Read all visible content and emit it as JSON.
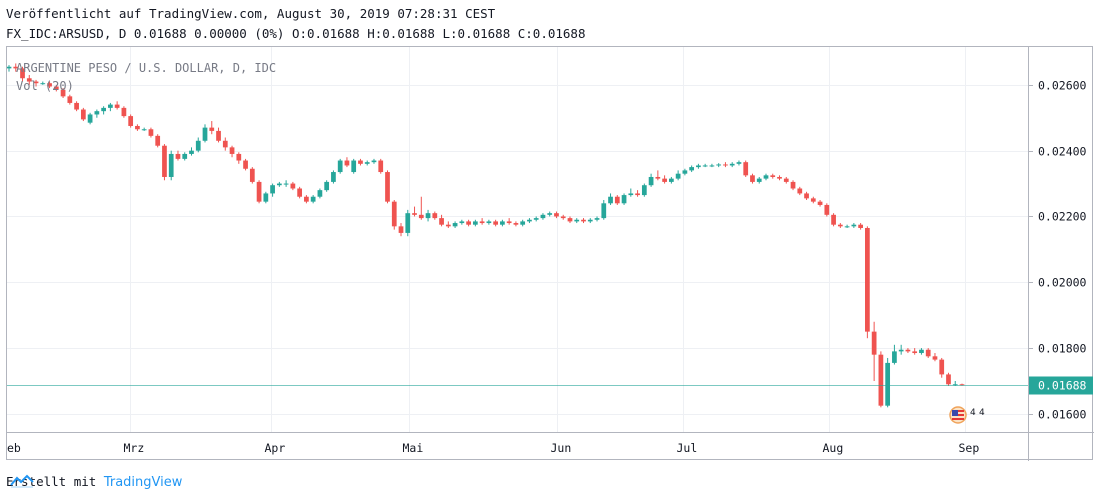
{
  "header": {
    "published": "Veröffentlicht auf TradingView.com, August 30, 2019 07:28:31 CEST",
    "ohlc": "FX_IDC:ARSUSD, D 0.01688 0.00000 (0%) O:0.01688 H:0.01688 L:0.01688 C:0.01688"
  },
  "footer": {
    "created_with": "Erstellt mit",
    "brand": "TradingView"
  },
  "colors": {
    "up": "#26a69a",
    "down": "#ef5350",
    "last_price_line": "#26a69a",
    "grid": "#eef0f4"
  },
  "chart_data": {
    "type": "candlestick",
    "title": "ARGENTINE PESO / U.S. DOLLAR, D, IDC",
    "indicator": "Vol (20)",
    "x_tick_labels": [
      "eb",
      "Mrz",
      "Apr",
      "Mai",
      "Jun",
      "Jul",
      "Aug",
      "Sep"
    ],
    "y_tick_labels": [
      "0.02600",
      "0.02400",
      "0.02200",
      "0.02000",
      "0.01800",
      "0.01600"
    ],
    "y_ticks": [
      0.026,
      0.024,
      0.022,
      0.02,
      0.018,
      0.016
    ],
    "ylim": [
      0.01545,
      0.02715
    ],
    "last_price_label": "0.01688",
    "last_price": 0.01688,
    "grid": true,
    "candles": [
      [
        0.0265,
        0.0266,
        0.0264,
        0.02655
      ],
      [
        0.02655,
        0.02665,
        0.0264,
        0.0265
      ],
      [
        0.0265,
        0.02655,
        0.0261,
        0.0262
      ],
      [
        0.0262,
        0.0263,
        0.026,
        0.0261
      ],
      [
        0.0261,
        0.02615,
        0.02595,
        0.02605
      ],
      [
        0.02605,
        0.0261,
        0.026,
        0.02605
      ],
      [
        0.02605,
        0.0261,
        0.0259,
        0.02595
      ],
      [
        0.02595,
        0.026,
        0.0258,
        0.02585
      ],
      [
        0.02585,
        0.0259,
        0.0256,
        0.02565
      ],
      [
        0.02565,
        0.0257,
        0.0254,
        0.02545
      ],
      [
        0.02545,
        0.0255,
        0.0252,
        0.02525
      ],
      [
        0.02525,
        0.0253,
        0.0249,
        0.02495
      ],
      [
        0.02485,
        0.02515,
        0.0248,
        0.0251
      ],
      [
        0.0251,
        0.02525,
        0.025,
        0.0252
      ],
      [
        0.0252,
        0.02535,
        0.0251,
        0.0253
      ],
      [
        0.0253,
        0.02545,
        0.0252,
        0.0254
      ],
      [
        0.0254,
        0.0255,
        0.02525,
        0.0253
      ],
      [
        0.0253,
        0.02535,
        0.025,
        0.02505
      ],
      [
        0.02505,
        0.0251,
        0.0247,
        0.02475
      ],
      [
        0.02475,
        0.0248,
        0.0246,
        0.02465
      ],
      [
        0.02465,
        0.0247,
        0.0246,
        0.02465
      ],
      [
        0.02465,
        0.0247,
        0.0244,
        0.02445
      ],
      [
        0.02445,
        0.0245,
        0.0241,
        0.02415
      ],
      [
        0.02415,
        0.0242,
        0.0231,
        0.0232
      ],
      [
        0.0232,
        0.024,
        0.0231,
        0.0239
      ],
      [
        0.0239,
        0.024,
        0.0237,
        0.02375
      ],
      [
        0.02375,
        0.02395,
        0.0237,
        0.0239
      ],
      [
        0.0239,
        0.0241,
        0.02385,
        0.024
      ],
      [
        0.024,
        0.0244,
        0.02395,
        0.0243
      ],
      [
        0.0243,
        0.0248,
        0.02425,
        0.0247
      ],
      [
        0.0247,
        0.0249,
        0.0245,
        0.0246
      ],
      [
        0.0246,
        0.0247,
        0.02425,
        0.0243
      ],
      [
        0.0243,
        0.0244,
        0.024,
        0.0241
      ],
      [
        0.0241,
        0.02415,
        0.0238,
        0.0239
      ],
      [
        0.0239,
        0.02395,
        0.0236,
        0.0237
      ],
      [
        0.0237,
        0.02375,
        0.0234,
        0.02345
      ],
      [
        0.02345,
        0.0235,
        0.023,
        0.02305
      ],
      [
        0.02305,
        0.0231,
        0.0224,
        0.02245
      ],
      [
        0.02245,
        0.02275,
        0.0224,
        0.0227
      ],
      [
        0.0227,
        0.023,
        0.0226,
        0.02295
      ],
      [
        0.02295,
        0.02305,
        0.0229,
        0.023
      ],
      [
        0.023,
        0.0231,
        0.0229,
        0.023
      ],
      [
        0.023,
        0.02305,
        0.0228,
        0.02285
      ],
      [
        0.02285,
        0.0229,
        0.02255,
        0.0226
      ],
      [
        0.0226,
        0.02265,
        0.0224,
        0.02245
      ],
      [
        0.02245,
        0.02265,
        0.0224,
        0.0226
      ],
      [
        0.0226,
        0.02285,
        0.02255,
        0.0228
      ],
      [
        0.0228,
        0.0231,
        0.02275,
        0.02305
      ],
      [
        0.02305,
        0.0234,
        0.023,
        0.02335
      ],
      [
        0.02335,
        0.02375,
        0.0233,
        0.0237
      ],
      [
        0.0237,
        0.0238,
        0.0235,
        0.02355
      ],
      [
        0.02335,
        0.02375,
        0.0233,
        0.0237
      ],
      [
        0.0237,
        0.02375,
        0.02355,
        0.0236
      ],
      [
        0.0236,
        0.0237,
        0.02355,
        0.02365
      ],
      [
        0.02365,
        0.02375,
        0.0236,
        0.0237
      ],
      [
        0.0237,
        0.02375,
        0.0233,
        0.02335
      ],
      [
        0.02335,
        0.0234,
        0.0224,
        0.02245
      ],
      [
        0.02245,
        0.0225,
        0.0216,
        0.0217
      ],
      [
        0.0217,
        0.0218,
        0.0214,
        0.0215
      ],
      [
        0.0215,
        0.0222,
        0.0214,
        0.0221
      ],
      [
        0.0221,
        0.0223,
        0.022,
        0.02205
      ],
      [
        0.02205,
        0.0226,
        0.0219,
        0.02195
      ],
      [
        0.02195,
        0.0222,
        0.02185,
        0.0221
      ],
      [
        0.0221,
        0.02215,
        0.0219,
        0.02195
      ],
      [
        0.02195,
        0.02205,
        0.0217,
        0.02175
      ],
      [
        0.02175,
        0.02185,
        0.02165,
        0.0217
      ],
      [
        0.0217,
        0.02185,
        0.02165,
        0.0218
      ],
      [
        0.0218,
        0.0219,
        0.02175,
        0.02185
      ],
      [
        0.02185,
        0.0219,
        0.0217,
        0.02175
      ],
      [
        0.02175,
        0.0219,
        0.0217,
        0.02185
      ],
      [
        0.02185,
        0.02195,
        0.02175,
        0.0218
      ],
      [
        0.0218,
        0.0219,
        0.02175,
        0.02185
      ],
      [
        0.02185,
        0.0219,
        0.0217,
        0.02175
      ],
      [
        0.02175,
        0.0219,
        0.0217,
        0.02185
      ],
      [
        0.02185,
        0.02195,
        0.02175,
        0.0218
      ],
      [
        0.0218,
        0.02185,
        0.0217,
        0.02175
      ],
      [
        0.02175,
        0.0219,
        0.0217,
        0.02185
      ],
      [
        0.02185,
        0.02195,
        0.0218,
        0.0219
      ],
      [
        0.0219,
        0.022,
        0.02185,
        0.02195
      ],
      [
        0.02195,
        0.0221,
        0.0219,
        0.02205
      ],
      [
        0.02205,
        0.02215,
        0.022,
        0.0221
      ],
      [
        0.0221,
        0.02215,
        0.02195,
        0.022
      ],
      [
        0.022,
        0.02205,
        0.0219,
        0.02195
      ],
      [
        0.02195,
        0.022,
        0.0218,
        0.02185
      ],
      [
        0.02185,
        0.02195,
        0.0218,
        0.0219
      ],
      [
        0.0219,
        0.02195,
        0.0218,
        0.02185
      ],
      [
        0.02185,
        0.02195,
        0.0218,
        0.0219
      ],
      [
        0.0219,
        0.022,
        0.02185,
        0.02195
      ],
      [
        0.02195,
        0.0225,
        0.0219,
        0.0224
      ],
      [
        0.0224,
        0.0227,
        0.02235,
        0.0226
      ],
      [
        0.0226,
        0.02265,
        0.02235,
        0.0224
      ],
      [
        0.0224,
        0.0227,
        0.02235,
        0.02265
      ],
      [
        0.02265,
        0.02285,
        0.0226,
        0.0227
      ],
      [
        0.0227,
        0.0228,
        0.0226,
        0.02265
      ],
      [
        0.02265,
        0.023,
        0.0226,
        0.02295
      ],
      [
        0.02295,
        0.0233,
        0.0229,
        0.0232
      ],
      [
        0.0232,
        0.0234,
        0.0231,
        0.02315
      ],
      [
        0.02315,
        0.02325,
        0.023,
        0.02305
      ],
      [
        0.02305,
        0.0232,
        0.023,
        0.02315
      ],
      [
        0.02315,
        0.0234,
        0.0231,
        0.0233
      ],
      [
        0.0233,
        0.02345,
        0.02325,
        0.0234
      ],
      [
        0.0234,
        0.02355,
        0.02335,
        0.0235
      ],
      [
        0.0235,
        0.0236,
        0.02345,
        0.02355
      ],
      [
        0.02355,
        0.0236,
        0.0235,
        0.02355
      ],
      [
        0.02355,
        0.0236,
        0.0235,
        0.02355
      ],
      [
        0.02355,
        0.02362,
        0.0235,
        0.02358
      ],
      [
        0.02358,
        0.02365,
        0.0235,
        0.02355
      ],
      [
        0.02355,
        0.02365,
        0.0235,
        0.0236
      ],
      [
        0.0236,
        0.0237,
        0.02355,
        0.02365
      ],
      [
        0.02365,
        0.0237,
        0.0232,
        0.02325
      ],
      [
        0.02325,
        0.0233,
        0.023,
        0.02305
      ],
      [
        0.02305,
        0.0232,
        0.023,
        0.02315
      ],
      [
        0.02315,
        0.0233,
        0.0231,
        0.02325
      ],
      [
        0.02325,
        0.0233,
        0.02315,
        0.0232
      ],
      [
        0.0232,
        0.02325,
        0.0231,
        0.02315
      ],
      [
        0.02315,
        0.0232,
        0.023,
        0.02305
      ],
      [
        0.02305,
        0.0231,
        0.0228,
        0.02285
      ],
      [
        0.02285,
        0.0229,
        0.02265,
        0.0227
      ],
      [
        0.0227,
        0.02275,
        0.0225,
        0.02255
      ],
      [
        0.02255,
        0.0226,
        0.0224,
        0.02245
      ],
      [
        0.02245,
        0.0225,
        0.0223,
        0.02235
      ],
      [
        0.02235,
        0.0224,
        0.022,
        0.02205
      ],
      [
        0.02205,
        0.0221,
        0.0217,
        0.02175
      ],
      [
        0.02175,
        0.0218,
        0.02165,
        0.0217
      ],
      [
        0.0217,
        0.02175,
        0.02165,
        0.0217
      ],
      [
        0.0217,
        0.0218,
        0.02165,
        0.02175
      ],
      [
        0.02175,
        0.0218,
        0.0216,
        0.02165
      ],
      [
        0.02165,
        0.0217,
        0.0183,
        0.0185
      ],
      [
        0.0185,
        0.0188,
        0.017,
        0.0178
      ],
      [
        0.0178,
        0.0179,
        0.0162,
        0.01625
      ],
      [
        0.01625,
        0.0177,
        0.0162,
        0.01755
      ],
      [
        0.01755,
        0.0181,
        0.0175,
        0.0179
      ],
      [
        0.0179,
        0.0181,
        0.0178,
        0.01795
      ],
      [
        0.01795,
        0.018,
        0.01785,
        0.0179
      ],
      [
        0.0179,
        0.018,
        0.0178,
        0.01785
      ],
      [
        0.01785,
        0.018,
        0.0178,
        0.01795
      ],
      [
        0.01795,
        0.018,
        0.0177,
        0.01775
      ],
      [
        0.01775,
        0.01785,
        0.0176,
        0.01765
      ],
      [
        0.01765,
        0.0177,
        0.0171,
        0.0172
      ],
      [
        0.0172,
        0.01725,
        0.01685,
        0.0169
      ],
      [
        0.0169,
        0.017,
        0.01685,
        0.0169
      ],
      [
        0.0169,
        0.01692,
        0.01686,
        0.01688
      ]
    ]
  }
}
